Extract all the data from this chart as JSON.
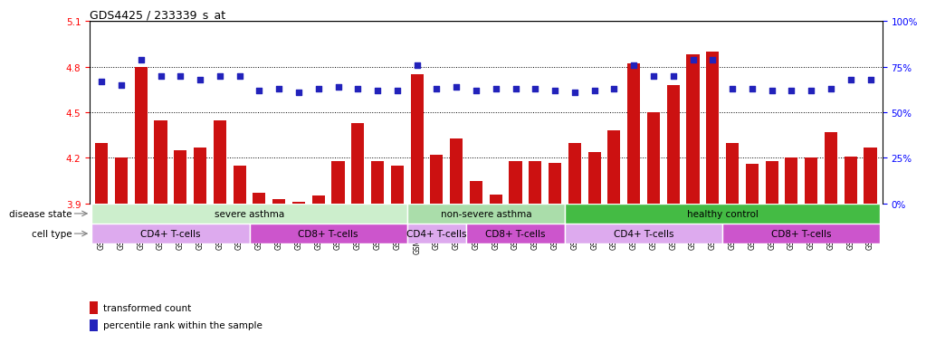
{
  "title": "GDS4425 / 233339_s_at",
  "samples": [
    "GSM788311",
    "GSM788312",
    "GSM788313",
    "GSM788314",
    "GSM788315",
    "GSM788316",
    "GSM788317",
    "GSM788318",
    "GSM788323",
    "GSM788324",
    "GSM788325",
    "GSM788326",
    "GSM788327",
    "GSM788328",
    "GSM788329",
    "GSM788330",
    "GSM7882299",
    "GSM788300",
    "GSM788301",
    "GSM788302",
    "GSM788319",
    "GSM788320",
    "GSM788321",
    "GSM788322",
    "GSM788303",
    "GSM788304",
    "GSM788305",
    "GSM788306",
    "GSM788307",
    "GSM788308",
    "GSM788309",
    "GSM788310",
    "GSM788331",
    "GSM788332",
    "GSM788333",
    "GSM788334",
    "GSM788335",
    "GSM788336",
    "GSM788337",
    "GSM788338"
  ],
  "bar_values": [
    4.3,
    4.2,
    4.8,
    4.45,
    4.25,
    4.27,
    4.45,
    4.15,
    3.97,
    3.93,
    3.91,
    3.95,
    4.18,
    4.43,
    4.18,
    4.15,
    4.75,
    4.22,
    4.33,
    4.05,
    3.96,
    4.18,
    4.18,
    4.17,
    4.3,
    4.24,
    4.38,
    4.82,
    4.5,
    4.68,
    4.88,
    4.9,
    4.3,
    4.16,
    4.18,
    4.2,
    4.2,
    4.37,
    4.21,
    4.27
  ],
  "percentile_values": [
    67,
    65,
    79,
    70,
    70,
    68,
    70,
    70,
    62,
    63,
    61,
    63,
    64,
    63,
    62,
    62,
    76,
    63,
    64,
    62,
    63,
    63,
    63,
    62,
    61,
    62,
    63,
    76,
    70,
    70,
    79,
    79,
    63,
    63,
    62,
    62,
    62,
    63,
    68,
    68
  ],
  "ylim_left": [
    3.9,
    5.1
  ],
  "ylim_right": [
    0,
    100
  ],
  "yticks_left": [
    3.9,
    4.2,
    4.5,
    4.8,
    5.1
  ],
  "yticks_right": [
    0,
    25,
    50,
    75,
    100
  ],
  "hlines": [
    4.2,
    4.5,
    4.8
  ],
  "bar_color": "#cc1111",
  "dot_color": "#2222bb",
  "disease_groups": [
    {
      "label": "severe asthma",
      "start": 0,
      "end": 15,
      "color": "#cceecc"
    },
    {
      "label": "non-severe asthma",
      "start": 16,
      "end": 23,
      "color": "#aaddaa"
    },
    {
      "label": "healthy control",
      "start": 24,
      "end": 39,
      "color": "#44bb44"
    }
  ],
  "cell_groups": [
    {
      "label": "CD4+ T-cells",
      "start": 0,
      "end": 7,
      "color": "#ddaaee"
    },
    {
      "label": "CD8+ T-cells",
      "start": 8,
      "end": 15,
      "color": "#cc55cc"
    },
    {
      "label": "CD4+ T-cells",
      "start": 16,
      "end": 18,
      "color": "#ddaaee"
    },
    {
      "label": "CD8+ T-cells",
      "start": 19,
      "end": 23,
      "color": "#cc55cc"
    },
    {
      "label": "CD4+ T-cells",
      "start": 24,
      "end": 31,
      "color": "#ddaaee"
    },
    {
      "label": "CD8+ T-cells",
      "start": 32,
      "end": 39,
      "color": "#cc55cc"
    }
  ],
  "disease_state_label": "disease state",
  "cell_type_label": "cell type",
  "legend_bar_label": "transformed count",
  "legend_dot_label": "percentile rank within the sample",
  "background_color": "#ffffff",
  "bar_width": 0.65,
  "dot_size": 22,
  "tick_fontsize": 5.5,
  "label_fontsize": 7.5,
  "title_fontsize": 9
}
